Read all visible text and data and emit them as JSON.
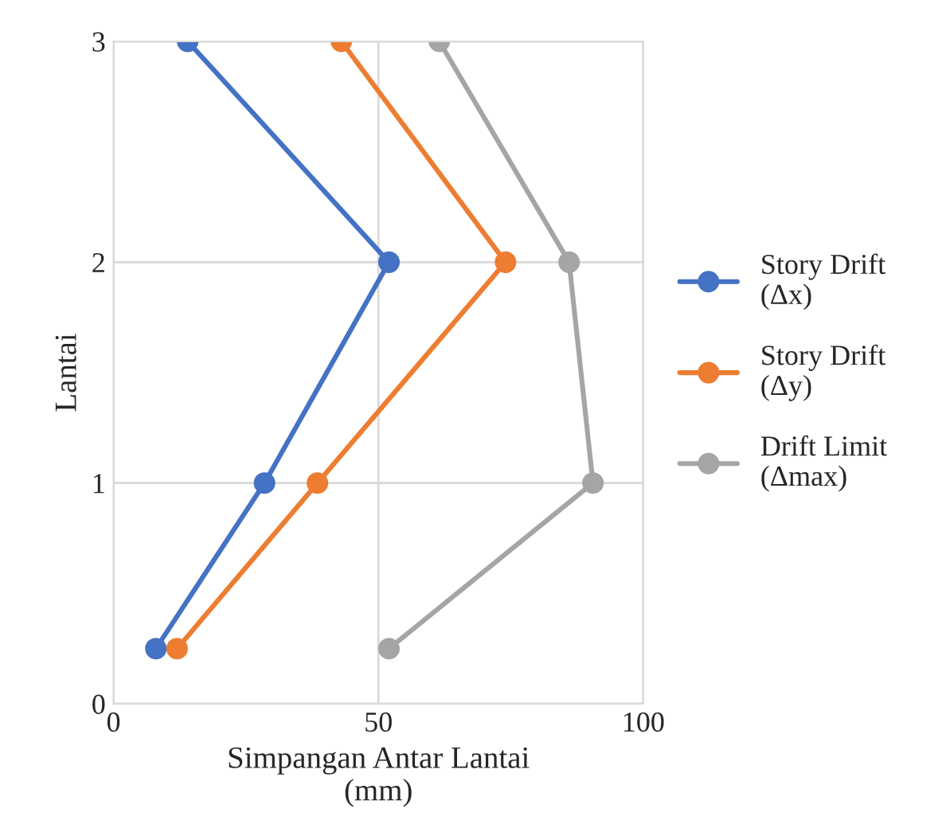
{
  "chart_data": {
    "type": "line",
    "xlabel": "Simpangan Antar Lantai\n(mm)",
    "ylabel": "Lantai",
    "xlim": [
      0,
      100
    ],
    "xticks": [
      0,
      50,
      100
    ],
    "ylim": [
      0,
      3
    ],
    "yticks": [
      0,
      1,
      2,
      3
    ],
    "grid": true,
    "legend": "right",
    "marker": "circle",
    "line_style": "solid",
    "series": [
      {
        "name": "Story Drift\n(Δx)",
        "color": "#4472c4",
        "x": [
          8,
          28.5,
          52,
          14
        ],
        "values": [
          0.25,
          1,
          2,
          3
        ]
      },
      {
        "name": "Story Drift\n(Δy)",
        "color": "#ed7d31",
        "x": [
          12,
          38.5,
          74,
          43
        ],
        "values": [
          0.25,
          1,
          2,
          3
        ]
      },
      {
        "name": "Drift Limit\n(Δmax)",
        "color": "#a5a5a5",
        "x": [
          52,
          90.5,
          86,
          61.5
        ],
        "values": [
          0.25,
          1,
          2,
          3
        ]
      }
    ]
  }
}
